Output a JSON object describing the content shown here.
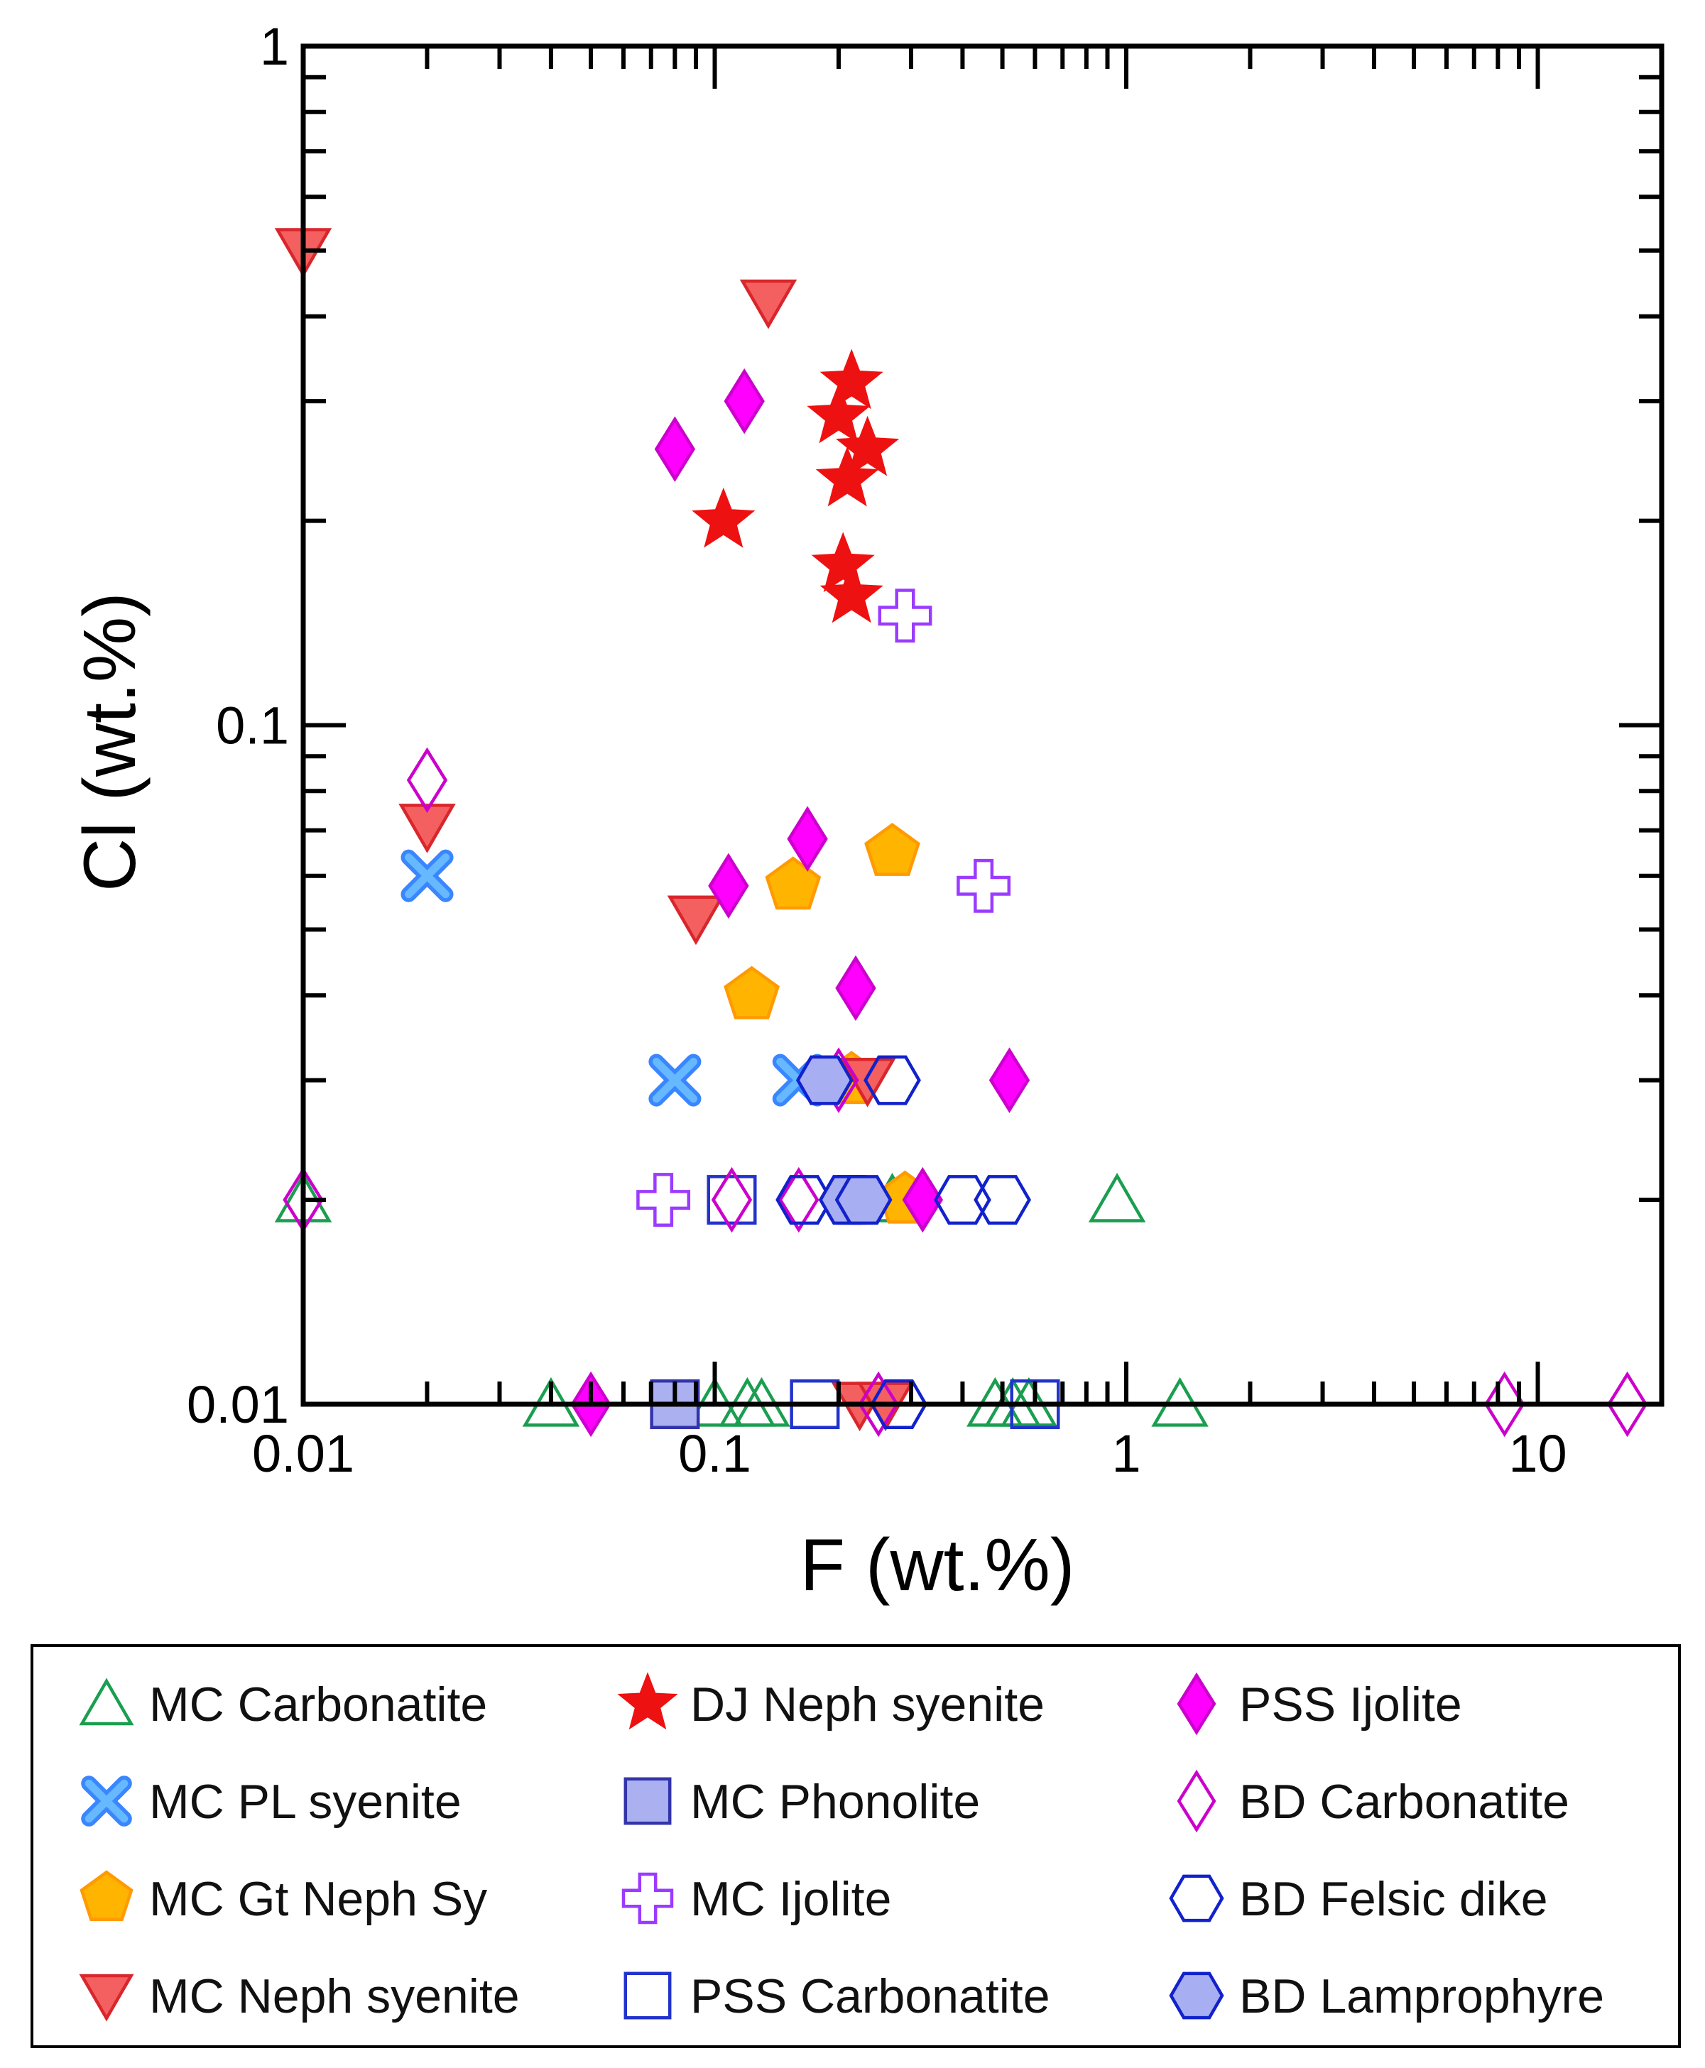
{
  "chart_data": {
    "type": "scatter",
    "title": "",
    "xlabel": "F (wt.%)",
    "ylabel": "Cl (wt.%)",
    "xscale": "log",
    "yscale": "log",
    "xlim": [
      0.01,
      20
    ],
    "ylim": [
      0.01,
      1
    ],
    "x_ticks": [
      {
        "value": 0.01,
        "label": "0.01"
      },
      {
        "value": 0.1,
        "label": "0.1"
      },
      {
        "value": 1,
        "label": "1"
      },
      {
        "value": 10,
        "label": "10"
      }
    ],
    "y_ticks": [
      {
        "value": 0.01,
        "label": "0.01"
      },
      {
        "value": 0.1,
        "label": "0.1"
      },
      {
        "value": 1,
        "label": "1"
      }
    ],
    "grid": false,
    "legend_position": "below",
    "series": [
      {
        "name": "MC Carbonatite",
        "marker": "triangle-up",
        "color": "#1a9e4f",
        "fill": "none",
        "points": [
          [
            0.01,
            0.02
          ],
          [
            0.04,
            0.01
          ],
          [
            0.1,
            0.01
          ],
          [
            0.12,
            0.01
          ],
          [
            0.13,
            0.01
          ],
          [
            0.27,
            0.02
          ],
          [
            0.48,
            0.01
          ],
          [
            0.53,
            0.01
          ],
          [
            0.58,
            0.01
          ],
          [
            0.95,
            0.02
          ],
          [
            1.35,
            0.01
          ]
        ]
      },
      {
        "name": "MC PL syenite",
        "marker": "x",
        "color": "#3a86ff",
        "fill": "#66b8ff",
        "points": [
          [
            0.02,
            0.06
          ],
          [
            0.08,
            0.03
          ],
          [
            0.16,
            0.03
          ]
        ]
      },
      {
        "name": "MC Gt Neph Sy",
        "marker": "pentagon",
        "color": "#ff9a00",
        "fill": "#ffb400",
        "points": [
          [
            0.27,
            0.065
          ],
          [
            0.155,
            0.058
          ],
          [
            0.123,
            0.04
          ],
          [
            0.215,
            0.03
          ],
          [
            0.29,
            0.02
          ]
        ]
      },
      {
        "name": "MC Neph syenite",
        "marker": "triangle-down",
        "color": "#d9262c",
        "fill": "#f46060",
        "points": [
          [
            0.01,
            0.5
          ],
          [
            0.135,
            0.42
          ],
          [
            0.02,
            0.071
          ],
          [
            0.09,
            0.052
          ],
          [
            0.235,
            0.03
          ],
          [
            0.225,
            0.01
          ],
          [
            0.26,
            0.01
          ]
        ]
      },
      {
        "name": "DJ Neph syenite",
        "marker": "star",
        "color": "#ee1111",
        "fill": "#ee1111",
        "points": [
          [
            0.215,
            0.32
          ],
          [
            0.2,
            0.285
          ],
          [
            0.235,
            0.255
          ],
          [
            0.21,
            0.23
          ],
          [
            0.105,
            0.2
          ],
          [
            0.205,
            0.172
          ],
          [
            0.215,
            0.155
          ]
        ]
      },
      {
        "name": "MC Phonolite",
        "marker": "square",
        "color": "#3333aa",
        "fill": "#aab0f0",
        "points": [
          [
            0.08,
            0.01
          ]
        ]
      },
      {
        "name": "MC Ijolite",
        "marker": "plus",
        "color": "#9b3bff",
        "fill": "none",
        "points": [
          [
            0.29,
            0.145
          ],
          [
            0.45,
            0.058
          ],
          [
            0.075,
            0.02
          ]
        ]
      },
      {
        "name": "PSS Carbonatite",
        "marker": "square",
        "color": "#2233cc",
        "fill": "none",
        "points": [
          [
            0.11,
            0.02
          ],
          [
            0.175,
            0.01
          ],
          [
            0.6,
            0.01
          ]
        ]
      },
      {
        "name": "PSS Ijolite",
        "marker": "diamond",
        "color": "#cc00cc",
        "fill": "#ff00ff",
        "points": [
          [
            0.118,
            0.3
          ],
          [
            0.08,
            0.255
          ],
          [
            0.168,
            0.068
          ],
          [
            0.108,
            0.058
          ],
          [
            0.22,
            0.041
          ],
          [
            0.52,
            0.03
          ],
          [
            0.32,
            0.02
          ],
          [
            0.05,
            0.01
          ]
        ]
      },
      {
        "name": "BD Carbonatite",
        "marker": "diamond",
        "color": "#cc00cc",
        "fill": "none",
        "points": [
          [
            0.02,
            0.083
          ],
          [
            0.01,
            0.02
          ],
          [
            0.11,
            0.02
          ],
          [
            0.16,
            0.02
          ],
          [
            0.2,
            0.03
          ],
          [
            0.25,
            0.01
          ],
          [
            8.3,
            0.01
          ],
          [
            16.5,
            0.01
          ]
        ]
      },
      {
        "name": "BD Felsic dike",
        "marker": "hexagon",
        "color": "#1122cc",
        "fill": "none",
        "points": [
          [
            0.27,
            0.03
          ],
          [
            0.165,
            0.02
          ],
          [
            0.215,
            0.02
          ],
          [
            0.4,
            0.02
          ],
          [
            0.5,
            0.02
          ],
          [
            0.28,
            0.01
          ]
        ]
      },
      {
        "name": "BD Lamprophyre",
        "marker": "hexagon",
        "color": "#1122cc",
        "fill": "#a8aef2",
        "points": [
          [
            0.185,
            0.03
          ],
          [
            0.21,
            0.02
          ],
          [
            0.23,
            0.02
          ]
        ]
      }
    ]
  }
}
